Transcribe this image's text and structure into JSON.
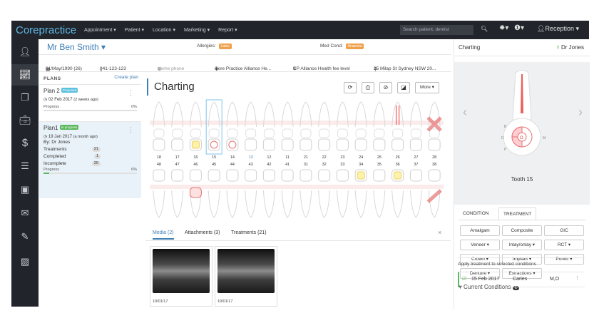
{
  "app": {
    "brand": "Corepractice",
    "nav": [
      "Appointment ▾",
      "Patient ▾",
      "Location ▾",
      "Marketing ▾",
      "Report ▾"
    ],
    "search_placeholder": "Search patient, dentist",
    "user_menu": "Reception ▾"
  },
  "sidebar": {
    "items": [
      "user",
      "chart",
      "documents",
      "briefcase",
      "billing",
      "notes",
      "payments",
      "mail",
      "attachments",
      "images"
    ]
  },
  "patient": {
    "name": "Mr Ben Smith ▾",
    "allergies_label": "Allergies:",
    "allergies_badge": "Latex",
    "medcond_label": "Med Cond:",
    "medcond_badge": "Anaemia",
    "dob": "01/May/1990 (26)",
    "phone": "041-123-123",
    "home_phone": "Home phone",
    "practice": "Core Practice Alliance He...",
    "fee": "CP Alliance Health fee level",
    "address": "35 Milap St Sydney NSW 20..."
  },
  "plans": {
    "title": "PLANS",
    "create": "Create plan",
    "items": [
      {
        "name": "Plan 2",
        "tag": "Proposed",
        "tag_color": "#5bc0de",
        "date": "02 Feb 2017",
        "ago": "(2 weeks ago)",
        "progress_label": "Progress",
        "progress_pct": "0%",
        "progress_value": 0
      },
      {
        "name": "Plan1",
        "tag": "In progress",
        "tag_color": "#5cb85c",
        "date": "19 Jan 2017",
        "ago": "(a month ago)",
        "by": "By: Dr Jones",
        "stats": [
          {
            "label": "Treatments",
            "value": "21"
          },
          {
            "label": "Completed",
            "value": "1"
          },
          {
            "label": "Incomplete",
            "value": "20"
          }
        ],
        "progress_label": "Progress",
        "progress_pct": "6%",
        "progress_value": 6
      }
    ]
  },
  "charting": {
    "title": "Charting",
    "more": "More ▾",
    "upper_numbers": [
      "18",
      "17",
      "16",
      "15",
      "14",
      "13",
      "12",
      "11",
      "21",
      "22",
      "23",
      "24",
      "25",
      "26",
      "27",
      "28"
    ],
    "lower_numbers": [
      "48",
      "47",
      "46",
      "45",
      "44",
      "43",
      "42",
      "41",
      "31",
      "32",
      "33",
      "34",
      "35",
      "36",
      "37",
      "38"
    ]
  },
  "bottom_tabs": {
    "media": "Media (2)",
    "attachments": "Attachments (3)",
    "treatments": "Treatments (21)"
  },
  "media": [
    {
      "date": "19/01/17"
    },
    {
      "date": "19/01/17"
    }
  ],
  "right": {
    "title": "Charting",
    "doctor": "Dr Jones",
    "tooth_name": "Tooth 15",
    "tabs": [
      "CONDITION",
      "TREATMENT"
    ],
    "buttons": [
      [
        "Amalgam",
        "Composite",
        "GIC"
      ],
      [
        "Veneer ▾",
        "Inlay/onlay ▾",
        "RCT ▾"
      ],
      [
        "Crown ▾",
        "Implant ▾",
        "Pontic ▾"
      ],
      [
        "Denture ▾",
        "Extractions ▾"
      ]
    ],
    "current_conditions": "Current Conditions",
    "cc_count": "1",
    "apply_text": "Apply treatment to selected conditions",
    "condition": {
      "date": "15 Feb 2017",
      "name": "Caries",
      "surface": "M,O"
    }
  }
}
